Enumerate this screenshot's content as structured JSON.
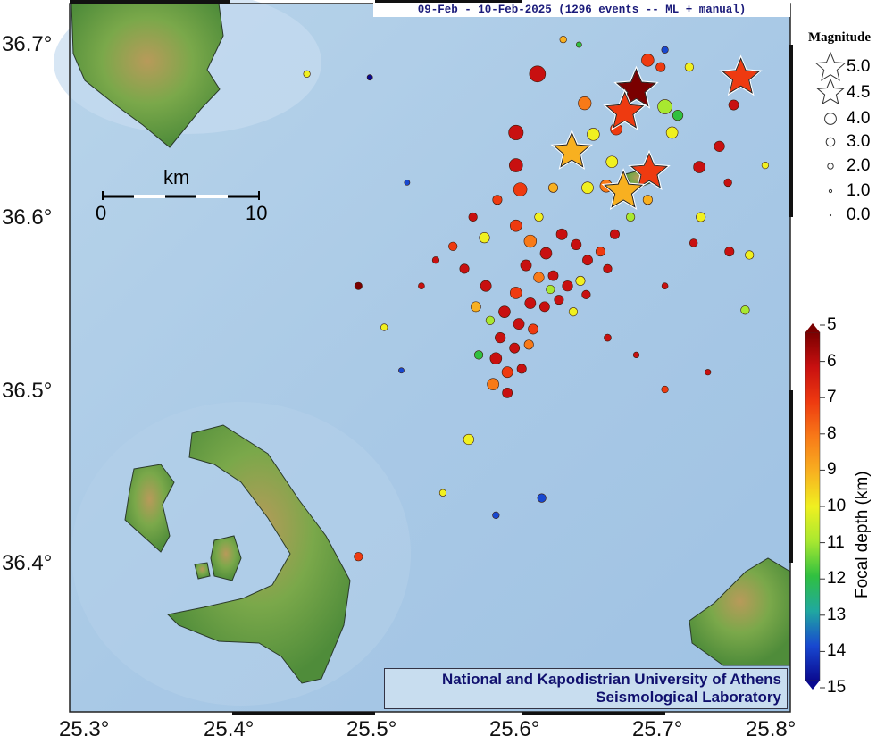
{
  "title": "09-Feb - 10-Feb-2025 (1296 events -- ML + manual)",
  "credit": {
    "line1": "National and Kapodistrian University of Athens",
    "line2": "Seismological Laboratory"
  },
  "axes": {
    "lon_ticks": [
      "25.3°",
      "25.4°",
      "25.5°",
      "25.6°",
      "25.7°",
      "25.8°"
    ],
    "lat_ticks": [
      "36.7°",
      "36.6°",
      "36.5°",
      "36.4°"
    ]
  },
  "scale_bar": {
    "unit": "km",
    "start": "0",
    "end": "10"
  },
  "magnitude_legend": {
    "title": "Magnitude",
    "entries": [
      {
        "label": "5.0",
        "symbol": "star"
      },
      {
        "label": "4.5",
        "symbol": "star"
      },
      {
        "label": "4.0",
        "symbol": "circle"
      },
      {
        "label": "3.0",
        "symbol": "circle"
      },
      {
        "label": "2.0",
        "symbol": "circle"
      },
      {
        "label": "1.0",
        "symbol": "circle"
      },
      {
        "label": "0.0",
        "symbol": "circle"
      }
    ]
  },
  "depth_colorbar": {
    "title": "Focal depth (km)",
    "ticks": [
      "5",
      "6",
      "7",
      "8",
      "9",
      "10",
      "11",
      "12",
      "13",
      "14",
      "15"
    ],
    "colors": [
      "#7a0000",
      "#c81010",
      "#ee3a10",
      "#f87a18",
      "#f8b020",
      "#f0f020",
      "#a8e830",
      "#30c040",
      "#20a8a0",
      "#1848d0",
      "#0a0a90"
    ]
  },
  "stars": [
    {
      "lon": 25.68,
      "lat": 36.674,
      "mag": 5.0,
      "depth": 5.3
    },
    {
      "lon": 25.672,
      "lat": 36.661,
      "mag": 4.7,
      "depth": 7
    },
    {
      "lon": 25.753,
      "lat": 36.681,
      "mag": 4.6,
      "depth": 7
    },
    {
      "lon": 25.689,
      "lat": 36.626,
      "mag": 4.5,
      "depth": 7
    },
    {
      "lon": 25.635,
      "lat": 36.638,
      "mag": 4.5,
      "depth": 8.7
    },
    {
      "lon": 25.671,
      "lat": 36.615,
      "mag": 4.8,
      "depth": 8.7
    }
  ],
  "events": [
    [
      25.611,
      36.683,
      4.0,
      5.5
    ],
    [
      25.596,
      36.649,
      3.6,
      5.5
    ],
    [
      25.596,
      36.63,
      3.3,
      6
    ],
    [
      25.599,
      36.616,
      3.3,
      7
    ],
    [
      25.644,
      36.666,
      3.2,
      8
    ],
    [
      25.65,
      36.648,
      3.0,
      9.5
    ],
    [
      25.666,
      36.651,
      2.8,
      7
    ],
    [
      25.688,
      36.691,
      3.0,
      7
    ],
    [
      25.7,
      36.664,
      3.5,
      10.5
    ],
    [
      25.709,
      36.659,
      2.5,
      12
    ],
    [
      25.705,
      36.649,
      2.8,
      9.5
    ],
    [
      25.724,
      36.629,
      2.8,
      5.5
    ],
    [
      25.738,
      36.641,
      2.5,
      6
    ],
    [
      25.748,
      36.665,
      2.4,
      5.5
    ],
    [
      25.697,
      36.687,
      2.2,
      7
    ],
    [
      25.717,
      36.687,
      2.0,
      10
    ],
    [
      25.646,
      36.617,
      2.8,
      10
    ],
    [
      25.659,
      36.618,
      3.0,
      8
    ],
    [
      25.663,
      36.632,
      2.8,
      10
    ],
    [
      25.622,
      36.617,
      2.2,
      9
    ],
    [
      25.629,
      36.703,
      1.5,
      9
    ],
    [
      25.7,
      36.697,
      1.5,
      14
    ],
    [
      25.725,
      36.6,
      2.2,
      9.5
    ],
    [
      25.756,
      36.546,
      2.0,
      10.5
    ],
    [
      25.563,
      36.471,
      2.5,
      10
    ],
    [
      25.614,
      36.437,
      2.0,
      14
    ],
    [
      25.582,
      36.427,
      1.5,
      14
    ],
    [
      25.545,
      36.44,
      1.5,
      10
    ],
    [
      25.486,
      36.56,
      1.7,
      5
    ],
    [
      25.45,
      36.683,
      1.5,
      10
    ],
    [
      25.494,
      36.681,
      1.2,
      14.5
    ],
    [
      25.504,
      36.536,
      1.5,
      10
    ],
    [
      25.516,
      36.511,
      1.2,
      14
    ],
    [
      25.486,
      36.403,
      2.0,
      6.5
    ],
    [
      25.759,
      36.578,
      2.0,
      10
    ],
    [
      25.72,
      36.585,
      1.8,
      6
    ],
    [
      25.744,
      36.62,
      1.8,
      6
    ],
    [
      25.7,
      36.56,
      1.4,
      5.5
    ],
    [
      25.583,
      36.61,
      2.2,
      7
    ],
    [
      25.566,
      36.6,
      2.0,
      5.5
    ],
    [
      25.574,
      36.588,
      2.5,
      10
    ],
    [
      25.596,
      36.595,
      2.8,
      7
    ],
    [
      25.606,
      36.586,
      3.0,
      8
    ],
    [
      25.617,
      36.579,
      2.8,
      6
    ],
    [
      25.628,
      36.59,
      2.6,
      5.5
    ],
    [
      25.638,
      36.584,
      2.5,
      6
    ],
    [
      25.646,
      36.575,
      2.4,
      5.5
    ],
    [
      25.655,
      36.58,
      2.2,
      7
    ],
    [
      25.603,
      36.572,
      2.6,
      5.5
    ],
    [
      25.612,
      36.565,
      2.5,
      8
    ],
    [
      25.622,
      36.566,
      2.4,
      6
    ],
    [
      25.632,
      36.56,
      2.5,
      5.5
    ],
    [
      25.641,
      36.563,
      2.2,
      10
    ],
    [
      25.596,
      36.556,
      2.8,
      7
    ],
    [
      25.606,
      36.55,
      2.6,
      5.5
    ],
    [
      25.616,
      36.548,
      2.4,
      6
    ],
    [
      25.626,
      36.552,
      2.2,
      5.5
    ],
    [
      25.588,
      36.545,
      2.8,
      6
    ],
    [
      25.598,
      36.538,
      2.6,
      5.5
    ],
    [
      25.608,
      36.535,
      2.4,
      7
    ],
    [
      25.585,
      36.53,
      2.5,
      5.5
    ],
    [
      25.595,
      36.524,
      2.4,
      6
    ],
    [
      25.605,
      36.526,
      2.2,
      8
    ],
    [
      25.582,
      36.518,
      2.8,
      5.5
    ],
    [
      25.59,
      36.51,
      2.6,
      7
    ],
    [
      25.6,
      36.512,
      2.2,
      5.5
    ],
    [
      25.58,
      36.503,
      2.8,
      8
    ],
    [
      25.59,
      36.498,
      2.4,
      6
    ],
    [
      25.575,
      36.56,
      2.6,
      5.5
    ],
    [
      25.568,
      36.548,
      2.4,
      9
    ],
    [
      25.56,
      36.57,
      2.2,
      5.5
    ],
    [
      25.552,
      36.583,
      2.0,
      7
    ],
    [
      25.636,
      36.545,
      2.0,
      9.5
    ],
    [
      25.645,
      36.555,
      2.0,
      5.5
    ],
    [
      25.66,
      36.57,
      2.0,
      6
    ],
    [
      25.665,
      36.59,
      2.2,
      5.5
    ],
    [
      25.676,
      36.6,
      2.0,
      10.5
    ],
    [
      25.688,
      36.61,
      2.2,
      9
    ],
    [
      25.612,
      36.6,
      2.0,
      10
    ],
    [
      25.62,
      36.558,
      2.0,
      10.5
    ],
    [
      25.578,
      36.54,
      2.0,
      11
    ],
    [
      25.57,
      36.52,
      2.0,
      12
    ],
    [
      25.54,
      36.575,
      1.5,
      5.5
    ],
    [
      25.53,
      36.56,
      1.4,
      6
    ],
    [
      25.52,
      36.62,
      1.2,
      14
    ],
    [
      25.66,
      36.53,
      1.6,
      5.5
    ],
    [
      25.68,
      36.52,
      1.3,
      6
    ],
    [
      25.7,
      36.5,
      1.5,
      7
    ],
    [
      25.73,
      36.51,
      1.3,
      5.5
    ],
    [
      25.745,
      36.58,
      2.2,
      5.5
    ],
    [
      25.77,
      36.63,
      1.5,
      10
    ],
    [
      25.64,
      36.7,
      1.2,
      12
    ]
  ]
}
